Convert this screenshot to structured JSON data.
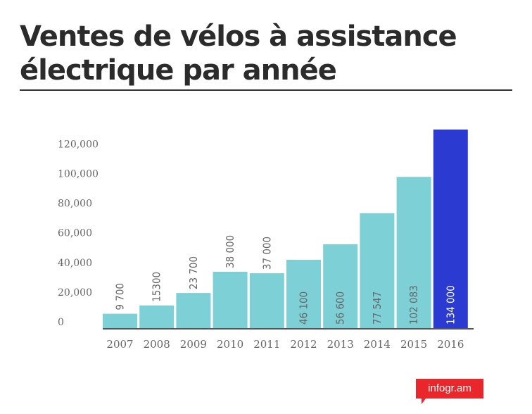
{
  "title": "Ventes de vélos à assistance électrique par année",
  "brand": "infogr.am",
  "colors": {
    "bar": "#7dd0d6",
    "bar_highlight": "#2b3bd1",
    "axis": "#555555",
    "tick_text": "#666666",
    "title_text": "#2b2b2b",
    "brand_bg": "#e8262b"
  },
  "chart_data": {
    "type": "bar",
    "categories": [
      "2007",
      "2008",
      "2009",
      "2010",
      "2011",
      "2012",
      "2013",
      "2014",
      "2015",
      "2016"
    ],
    "values": [
      9700,
      15300,
      23700,
      38000,
      37000,
      46100,
      56600,
      77547,
      102083,
      134000
    ],
    "data_labels": [
      "9 700",
      "15300",
      "23 700",
      "38 000",
      "37 000",
      "46 100",
      "56 600",
      "77 547",
      "102 083",
      "134 000"
    ],
    "highlight_index": 9,
    "y_ticks": [
      0,
      20000,
      40000,
      60000,
      80000,
      100000,
      120000
    ],
    "y_tick_labels": [
      "0",
      "20,000",
      "40,000",
      "60,000",
      "80,000",
      "100,000",
      "120,000"
    ],
    "ylim": [
      0,
      134000
    ],
    "grid": false,
    "title": "Ventes de vélos à assistance électrique par année",
    "xlabel": "",
    "ylabel": ""
  }
}
